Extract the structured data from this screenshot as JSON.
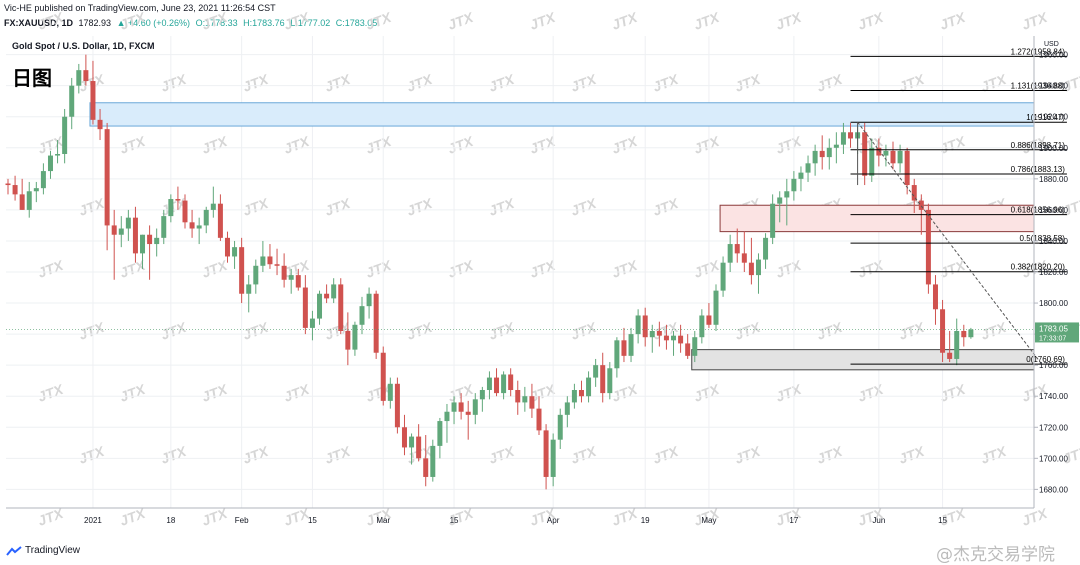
{
  "header": {
    "published": "Vic-HE published on TradingView.com, June 23, 2021 11:26:54 CST",
    "symbol": "FX:XAUUSD, 1D",
    "last": "1782.93",
    "change": "▲ +4.60 (+0.26%)",
    "open": "O:1778.33",
    "high": "H:1783.76",
    "low": "L:1777.02",
    "close": "C:1783.05"
  },
  "chart_title": "Gold Spot / U.S. Dollar, 1D, FXCM",
  "chart_subtitle": "日图",
  "footer": {
    "logo": "TradingView",
    "watermark_user": "@杰克交易学院"
  },
  "watermark_text": "JTX",
  "colors": {
    "up": "#60a77a",
    "down": "#d0524f",
    "blue_zone": "#d9ecfb",
    "red_zone": "#fbe3e3",
    "gray_zone": "#e3e3e3"
  },
  "chart_data": {
    "type": "candlestick",
    "title": "Gold Spot / U.S. Dollar, 1D, FXCM",
    "currency_label": "USD",
    "y_ticks": [
      1680,
      1700,
      1720,
      1740,
      1760,
      1780,
      1800,
      1820,
      1840,
      1860,
      1880,
      1900,
      1920,
      1940,
      1960
    ],
    "ylim": [
      1668,
      1972
    ],
    "x_ticks": [
      {
        "label": "2021",
        "index": 12
      },
      {
        "label": "18",
        "index": 23
      },
      {
        "label": "Feb",
        "index": 33
      },
      {
        "label": "15",
        "index": 43
      },
      {
        "label": "Mar",
        "index": 53
      },
      {
        "label": "15",
        "index": 63
      },
      {
        "label": "Apr",
        "index": 77
      },
      {
        "label": "19",
        "index": 90
      },
      {
        "label": "May",
        "index": 99
      },
      {
        "label": "17",
        "index": 111
      },
      {
        "label": "Jun",
        "index": 123
      },
      {
        "label": "15",
        "index": 132
      }
    ],
    "ohlc": [
      [
        1877,
        1880,
        1870,
        1876
      ],
      [
        1876,
        1882,
        1866,
        1870
      ],
      [
        1870,
        1880,
        1860,
        1860
      ],
      [
        1860,
        1878,
        1855,
        1872
      ],
      [
        1872,
        1878,
        1865,
        1874
      ],
      [
        1874,
        1890,
        1870,
        1885
      ],
      [
        1885,
        1898,
        1880,
        1895
      ],
      [
        1895,
        1905,
        1890,
        1896
      ],
      [
        1896,
        1925,
        1890,
        1920
      ],
      [
        1920,
        1945,
        1912,
        1940
      ],
      [
        1940,
        1954,
        1935,
        1950
      ],
      [
        1950,
        1960,
        1940,
        1943
      ],
      [
        1943,
        1956,
        1915,
        1918
      ],
      [
        1918,
        1925,
        1905,
        1912
      ],
      [
        1912,
        1916,
        1834,
        1850
      ],
      [
        1850,
        1860,
        1815,
        1844
      ],
      [
        1844,
        1856,
        1836,
        1848
      ],
      [
        1848,
        1860,
        1840,
        1855
      ],
      [
        1855,
        1862,
        1826,
        1832
      ],
      [
        1832,
        1844,
        1822,
        1844
      ],
      [
        1844,
        1850,
        1815,
        1838
      ],
      [
        1838,
        1848,
        1830,
        1842
      ],
      [
        1842,
        1860,
        1838,
        1856
      ],
      [
        1856,
        1870,
        1852,
        1867
      ],
      [
        1867,
        1875,
        1860,
        1866
      ],
      [
        1866,
        1870,
        1848,
        1852
      ],
      [
        1852,
        1860,
        1842,
        1848
      ],
      [
        1848,
        1855,
        1838,
        1850
      ],
      [
        1850,
        1862,
        1845,
        1860
      ],
      [
        1860,
        1875,
        1855,
        1864
      ],
      [
        1864,
        1870,
        1840,
        1842
      ],
      [
        1842,
        1846,
        1826,
        1830
      ],
      [
        1830,
        1840,
        1822,
        1836
      ],
      [
        1836,
        1842,
        1800,
        1806
      ],
      [
        1806,
        1818,
        1794,
        1812
      ],
      [
        1812,
        1828,
        1806,
        1824
      ],
      [
        1824,
        1840,
        1820,
        1830
      ],
      [
        1830,
        1838,
        1822,
        1825
      ],
      [
        1825,
        1835,
        1818,
        1824
      ],
      [
        1824,
        1832,
        1810,
        1815
      ],
      [
        1815,
        1822,
        1806,
        1818
      ],
      [
        1818,
        1822,
        1808,
        1810
      ],
      [
        1810,
        1818,
        1780,
        1784
      ],
      [
        1784,
        1795,
        1776,
        1790
      ],
      [
        1790,
        1808,
        1786,
        1806
      ],
      [
        1806,
        1812,
        1800,
        1803
      ],
      [
        1803,
        1816,
        1800,
        1812
      ],
      [
        1812,
        1816,
        1780,
        1782
      ],
      [
        1782,
        1794,
        1760,
        1770
      ],
      [
        1770,
        1788,
        1766,
        1786
      ],
      [
        1786,
        1804,
        1780,
        1798
      ],
      [
        1798,
        1810,
        1790,
        1806
      ],
      [
        1806,
        1808,
        1764,
        1768
      ],
      [
        1768,
        1772,
        1734,
        1737
      ],
      [
        1737,
        1752,
        1732,
        1748
      ],
      [
        1748,
        1752,
        1716,
        1720
      ],
      [
        1720,
        1728,
        1702,
        1707
      ],
      [
        1707,
        1716,
        1696,
        1714
      ],
      [
        1714,
        1722,
        1698,
        1700
      ],
      [
        1700,
        1715,
        1682,
        1688
      ],
      [
        1688,
        1712,
        1685,
        1708
      ],
      [
        1708,
        1726,
        1700,
        1724
      ],
      [
        1724,
        1735,
        1710,
        1730
      ],
      [
        1730,
        1740,
        1722,
        1736
      ],
      [
        1736,
        1742,
        1725,
        1730
      ],
      [
        1730,
        1737,
        1712,
        1728
      ],
      [
        1728,
        1742,
        1722,
        1738
      ],
      [
        1738,
        1746,
        1730,
        1744
      ],
      [
        1744,
        1756,
        1738,
        1752
      ],
      [
        1752,
        1758,
        1740,
        1742
      ],
      [
        1742,
        1756,
        1738,
        1754
      ],
      [
        1754,
        1758,
        1740,
        1744
      ],
      [
        1744,
        1750,
        1728,
        1736
      ],
      [
        1736,
        1746,
        1730,
        1740
      ],
      [
        1740,
        1748,
        1726,
        1732
      ],
      [
        1732,
        1740,
        1715,
        1718
      ],
      [
        1718,
        1722,
        1680,
        1688
      ],
      [
        1688,
        1716,
        1682,
        1712
      ],
      [
        1712,
        1732,
        1706,
        1728
      ],
      [
        1728,
        1740,
        1720,
        1736
      ],
      [
        1736,
        1748,
        1732,
        1744
      ],
      [
        1744,
        1750,
        1736,
        1740
      ],
      [
        1740,
        1756,
        1736,
        1752
      ],
      [
        1752,
        1764,
        1746,
        1760
      ],
      [
        1760,
        1768,
        1736,
        1742
      ],
      [
        1742,
        1762,
        1738,
        1758
      ],
      [
        1758,
        1778,
        1752,
        1776
      ],
      [
        1776,
        1784,
        1762,
        1766
      ],
      [
        1766,
        1784,
        1762,
        1780
      ],
      [
        1780,
        1796,
        1774,
        1792
      ],
      [
        1792,
        1797,
        1772,
        1778
      ],
      [
        1778,
        1786,
        1768,
        1782
      ],
      [
        1782,
        1788,
        1772,
        1779
      ],
      [
        1779,
        1786,
        1770,
        1776
      ],
      [
        1776,
        1782,
        1766,
        1779
      ],
      [
        1779,
        1786,
        1768,
        1774
      ],
      [
        1774,
        1780,
        1764,
        1766
      ],
      [
        1766,
        1782,
        1762,
        1778
      ],
      [
        1778,
        1796,
        1774,
        1792
      ],
      [
        1792,
        1800,
        1784,
        1786
      ],
      [
        1786,
        1812,
        1782,
        1808
      ],
      [
        1808,
        1830,
        1804,
        1826
      ],
      [
        1826,
        1844,
        1820,
        1838
      ],
      [
        1838,
        1848,
        1826,
        1832
      ],
      [
        1832,
        1846,
        1820,
        1826
      ],
      [
        1826,
        1842,
        1812,
        1818
      ],
      [
        1818,
        1832,
        1806,
        1828
      ],
      [
        1828,
        1845,
        1822,
        1842
      ],
      [
        1842,
        1870,
        1838,
        1864
      ],
      [
        1864,
        1872,
        1852,
        1868
      ],
      [
        1868,
        1880,
        1850,
        1872
      ],
      [
        1872,
        1885,
        1866,
        1880
      ],
      [
        1880,
        1888,
        1872,
        1884
      ],
      [
        1884,
        1895,
        1878,
        1890
      ],
      [
        1890,
        1902,
        1882,
        1898
      ],
      [
        1898,
        1908,
        1886,
        1894
      ],
      [
        1894,
        1906,
        1886,
        1900
      ],
      [
        1900,
        1910,
        1890,
        1902
      ],
      [
        1902,
        1916,
        1896,
        1910
      ],
      [
        1910,
        1916,
        1900,
        1906
      ],
      [
        1906,
        1914,
        1896,
        1910
      ],
      [
        1910,
        1916,
        1876,
        1882
      ],
      [
        1882,
        1906,
        1878,
        1900
      ],
      [
        1900,
        1906,
        1888,
        1895
      ],
      [
        1895,
        1902,
        1888,
        1898
      ],
      [
        1898,
        1904,
        1886,
        1890
      ],
      [
        1890,
        1902,
        1884,
        1898
      ],
      [
        1898,
        1900,
        1870,
        1876
      ],
      [
        1876,
        1880,
        1858,
        1866
      ],
      [
        1866,
        1870,
        1844,
        1860
      ],
      [
        1860,
        1864,
        1806,
        1812
      ],
      [
        1812,
        1818,
        1786,
        1796
      ],
      [
        1796,
        1802,
        1762,
        1768
      ],
      [
        1768,
        1782,
        1762,
        1764
      ],
      [
        1764,
        1790,
        1760,
        1782
      ],
      [
        1782,
        1786,
        1772,
        1778
      ],
      [
        1778,
        1784,
        1777,
        1783
      ]
    ],
    "zones": [
      {
        "name": "blue",
        "from": 1914,
        "to": 1929,
        "start_index": 12,
        "end_index": 149
      },
      {
        "name": "red",
        "from": 1846,
        "to": 1863,
        "start_index": 101,
        "end_index": 149
      },
      {
        "name": "gray",
        "from": 1757,
        "to": 1770,
        "start_index": 97,
        "end_index": 149
      }
    ],
    "fib_levels": [
      {
        "ratio": "1.272",
        "price": "1958.84",
        "value": 1958.84
      },
      {
        "ratio": "1.131",
        "price": "1936.88",
        "value": 1936.88
      },
      {
        "ratio": "1",
        "price": "1916.47",
        "value": 1916.47
      },
      {
        "ratio": "0.886",
        "price": "1898.71",
        "value": 1898.71
      },
      {
        "ratio": "0.786",
        "price": "1883.13",
        "value": 1883.13
      },
      {
        "ratio": "0.618",
        "price": "1856.96",
        "value": 1856.96
      },
      {
        "ratio": "0.5",
        "price": "1838.58",
        "value": 1838.58
      },
      {
        "ratio": "0.382",
        "price": "1820.20",
        "value": 1820.2
      },
      {
        "ratio": "0",
        "price": "1760.69",
        "value": 1760.69
      }
    ],
    "current_price_label": "1783.05",
    "countdown_label": "17:33:07"
  }
}
